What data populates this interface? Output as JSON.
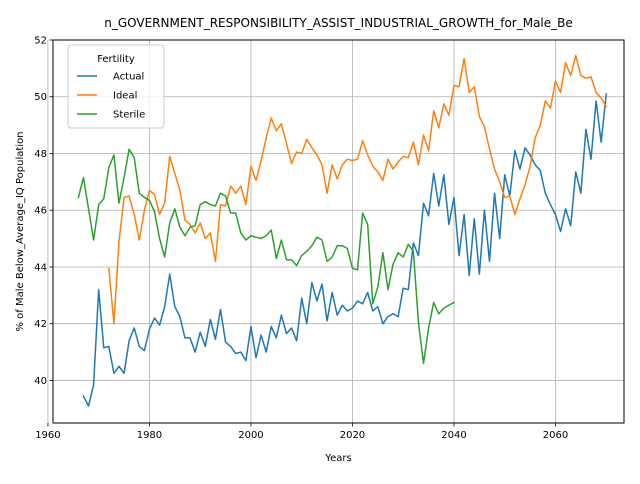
{
  "chart_data": {
    "type": "line",
    "title": "n_GOVERNMENT_RESPONSIBILITY_ASSIST_INDUSTRIAL_GROWTH_for_Male_Be",
    "xlabel": "Years",
    "ylabel": "% of Male Below_Average_IQ Population",
    "xlim": [
      1961,
      2073.5
    ],
    "ylim": [
      38.5,
      52.0
    ],
    "xticks": [
      1960,
      1980,
      2000,
      2020,
      2040,
      2060
    ],
    "yticks": [
      40,
      42,
      44,
      46,
      48,
      50,
      52
    ],
    "grid": true,
    "legend": {
      "title": "Fertility",
      "placement": "top-left"
    },
    "series": [
      {
        "name": "Actual",
        "color": "#1f77b4",
        "x": [
          1967,
          1968,
          1969,
          1970,
          1971,
          1972,
          1973,
          1974,
          1975,
          1976,
          1977,
          1978,
          1979,
          1980,
          1981,
          1982,
          1983,
          1984,
          1985,
          1986,
          1987,
          1988,
          1989,
          1990,
          1991,
          1992,
          1993,
          1994,
          1995,
          1996,
          1997,
          1998,
          1999,
          2000,
          2001,
          2002,
          2003,
          2004,
          2005,
          2006,
          2007,
          2008,
          2009,
          2010,
          2011,
          2012,
          2013,
          2014,
          2015,
          2016,
          2017,
          2018,
          2019,
          2020,
          2021,
          2022,
          2023,
          2024,
          2025,
          2026,
          2027,
          2028,
          2029,
          2030,
          2031,
          2032,
          2033,
          2034,
          2035,
          2036,
          2037,
          2038,
          2039,
          2040,
          2041,
          2042,
          2043,
          2044,
          2045,
          2046,
          2047,
          2048,
          2049,
          2050,
          2051,
          2052,
          2053,
          2054,
          2055,
          2056,
          2057,
          2058,
          2059,
          2060,
          2061,
          2062,
          2063,
          2064,
          2065,
          2066,
          2067,
          2068,
          2069,
          2070
        ],
        "y": [
          39.45,
          39.1,
          39.85,
          43.2,
          41.15,
          41.2,
          40.25,
          40.5,
          40.25,
          41.4,
          41.85,
          41.2,
          41.05,
          41.8,
          42.2,
          41.95,
          42.6,
          43.75,
          42.6,
          42.25,
          41.5,
          41.5,
          41.0,
          41.7,
          41.2,
          42.15,
          41.45,
          42.5,
          41.35,
          41.2,
          40.95,
          41.0,
          40.7,
          41.9,
          40.8,
          41.6,
          41.0,
          41.9,
          41.5,
          42.3,
          41.65,
          41.85,
          41.4,
          42.9,
          42.0,
          43.45,
          42.8,
          43.4,
          42.1,
          43.1,
          42.3,
          42.65,
          42.45,
          42.55,
          42.8,
          42.7,
          43.1,
          42.45,
          42.6,
          42.0,
          42.25,
          42.35,
          42.25,
          43.25,
          43.2,
          44.85,
          44.4,
          46.25,
          45.8,
          47.3,
          46.15,
          47.25,
          45.5,
          46.45,
          44.4,
          45.85,
          43.7,
          45.7,
          43.75,
          46.0,
          44.2,
          46.6,
          45.0,
          47.25,
          46.5,
          48.1,
          47.45,
          48.2,
          47.95,
          47.6,
          47.4,
          46.6,
          46.2,
          45.85,
          45.25,
          46.05,
          45.45,
          47.35,
          46.6,
          48.85,
          47.8,
          49.85,
          48.4,
          50.1
        ]
      },
      {
        "name": "Ideal",
        "color": "#ff7f0e",
        "x": [
          1972,
          1973,
          1974,
          1975,
          1976,
          1977,
          1978,
          1979,
          1980,
          1981,
          1982,
          1983,
          1984,
          1985,
          1986,
          1987,
          1988,
          1989,
          1990,
          1991,
          1992,
          1993,
          1994,
          1995,
          1996,
          1997,
          1998,
          1999,
          2000,
          2001,
          2002,
          2003,
          2004,
          2005,
          2006,
          2007,
          2008,
          2009,
          2010,
          2011,
          2012,
          2013,
          2014,
          2015,
          2016,
          2017,
          2018,
          2019,
          2020,
          2021,
          2022,
          2023,
          2024,
          2025,
          2026,
          2027,
          2028,
          2029,
          2030,
          2031,
          2032,
          2033,
          2034,
          2035,
          2036,
          2037,
          2038,
          2039,
          2040,
          2041,
          2042,
          2043,
          2044,
          2045,
          2046,
          2047,
          2048,
          2049,
          2050,
          2051,
          2052,
          2053,
          2054,
          2055,
          2056,
          2057,
          2058,
          2059,
          2060,
          2061,
          2062,
          2063,
          2064,
          2065,
          2066,
          2067,
          2068,
          2069,
          2070
        ],
        "y": [
          43.95,
          42.0,
          44.9,
          46.45,
          46.5,
          45.85,
          44.95,
          46.0,
          46.7,
          46.55,
          45.85,
          46.25,
          47.9,
          47.3,
          46.7,
          45.65,
          45.5,
          45.2,
          45.55,
          45.0,
          45.2,
          44.2,
          46.2,
          46.15,
          46.85,
          46.6,
          46.85,
          46.2,
          47.55,
          47.05,
          47.75,
          48.55,
          49.25,
          48.8,
          49.05,
          48.35,
          47.65,
          48.05,
          48.0,
          48.5,
          48.2,
          47.95,
          47.6,
          46.6,
          47.6,
          47.1,
          47.6,
          47.8,
          47.75,
          47.8,
          48.45,
          47.95,
          47.55,
          47.35,
          47.05,
          47.8,
          47.45,
          47.7,
          47.9,
          47.85,
          48.4,
          47.6,
          48.65,
          48.1,
          49.5,
          48.9,
          49.75,
          49.35,
          50.4,
          50.35,
          51.35,
          50.15,
          50.35,
          49.3,
          48.95,
          48.15,
          47.45,
          47.0,
          46.45,
          46.5,
          45.85,
          46.4,
          46.9,
          47.55,
          48.55,
          49.0,
          49.85,
          49.6,
          50.55,
          50.15,
          51.2,
          50.75,
          51.45,
          50.75,
          50.65,
          50.7,
          50.15,
          49.95,
          49.65
        ]
      },
      {
        "name": "Sterile",
        "color": "#2ca02c",
        "x": [
          1966,
          1967,
          1968,
          1969,
          1970,
          1971,
          1972,
          1973,
          1974,
          1975,
          1976,
          1977,
          1978,
          1979,
          1980,
          1981,
          1982,
          1983,
          1984,
          1985,
          1986,
          1987,
          1988,
          1989,
          1990,
          1991,
          1992,
          1993,
          1994,
          1995,
          1996,
          1997,
          1998,
          1999,
          2000,
          2001,
          2002,
          2003,
          2004,
          2005,
          2006,
          2007,
          2008,
          2009,
          2010,
          2011,
          2012,
          2013,
          2014,
          2015,
          2016,
          2017,
          2018,
          2019,
          2020,
          2021,
          2022,
          2023,
          2024,
          2025,
          2026,
          2027,
          2028,
          2029,
          2030,
          2031,
          2032,
          2033,
          2034,
          2035,
          2036,
          2037,
          2038,
          2039,
          2040
        ],
        "y": [
          46.45,
          47.15,
          46.05,
          44.95,
          46.2,
          46.4,
          47.5,
          47.95,
          46.25,
          47.15,
          48.15,
          47.85,
          46.6,
          46.45,
          46.35,
          45.95,
          45.0,
          44.35,
          45.55,
          46.05,
          45.4,
          45.1,
          45.4,
          45.45,
          46.2,
          46.3,
          46.2,
          46.15,
          46.6,
          46.5,
          45.9,
          45.9,
          45.2,
          44.95,
          45.1,
          45.05,
          45.0,
          45.1,
          45.3,
          44.3,
          44.95,
          44.25,
          44.25,
          44.05,
          44.4,
          44.55,
          44.75,
          45.05,
          44.95,
          44.2,
          44.35,
          44.75,
          44.75,
          44.65,
          43.95,
          43.9,
          45.9,
          45.5,
          42.7,
          43.3,
          44.5,
          43.2,
          44.1,
          44.5,
          44.35,
          44.8,
          44.55,
          42.05,
          40.6,
          41.85,
          42.75,
          42.35,
          42.55,
          42.65,
          42.75
        ]
      }
    ]
  }
}
